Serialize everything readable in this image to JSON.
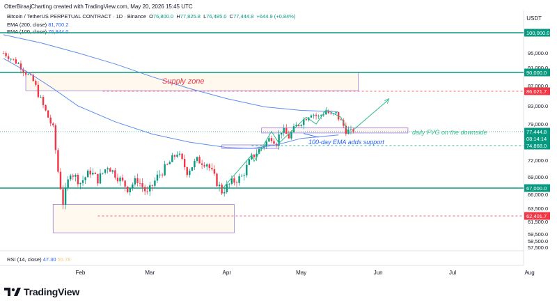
{
  "header": {
    "caption": "OtterBiraajCharting created with TradingView.com, May 20, 2026 15:45 UTC",
    "symbol": "Bitcoin / TetherUS PERPETUAL CONTRACT · 1D · Binance",
    "ohlc": {
      "o_label": "O",
      "o": "76,800.0",
      "h_label": "H",
      "h": "77,825.8",
      "l_label": "L",
      "l": "76,485.0",
      "c_label": "C",
      "c": "77,444.8",
      "change": "+644.9 (+0.84%)"
    },
    "ema200_label": "EMA (200, close)",
    "ema200_value": "81,700.2",
    "ema100_label": "EMA (100, close)",
    "ema100_value": "76,844.0",
    "currency": "USDT"
  },
  "rsi": {
    "label": "RSI (14, close)",
    "v1": "47.30",
    "v2": "55.78"
  },
  "brand": "TradingView",
  "colors": {
    "up": "#089981",
    "down": "#f23645",
    "ema": "#5b8def",
    "zone": "#9a7fd6",
    "level": "#089981",
    "accent": "#2962ff"
  },
  "chart_data": {
    "type": "candlestick",
    "y_axis_ticks": [
      "100,000.0",
      "95,000.0",
      "91,000.0",
      "90,000.0",
      "87,000.0",
      "86,021.7",
      "83,000.0",
      "79,000.0",
      "77,444.8",
      "74,868.0",
      "72,000.0",
      "69,000.0",
      "67,000.0",
      "66,000.0",
      "63,500.0",
      "62,401.7",
      "61,500.0",
      "59,500.0",
      "58,500.0",
      "57,500.0"
    ],
    "x_axis_ticks": [
      "Feb",
      "Mar",
      "Apr",
      "May",
      "Jun",
      "Jul",
      "Aug"
    ],
    "price_labels": [
      {
        "value": "100,000.0",
        "style": "level"
      },
      {
        "value": "90,000.0",
        "style": "level"
      },
      {
        "value": "86,021.7",
        "style": "down"
      },
      {
        "value": "77,444.8",
        "style": "up"
      },
      {
        "value": "08:14:14",
        "style": "up"
      },
      {
        "value": "74,868.0",
        "style": "level"
      },
      {
        "value": "67,000.0",
        "style": "level"
      },
      {
        "value": "62,401.7",
        "style": "down"
      }
    ],
    "horizontal_levels": [
      100000,
      90000,
      67000
    ],
    "dashed_levels": [
      86021.7,
      74868.0,
      62401.7
    ],
    "annotations": [
      "Supply zone",
      "daily FVG on the downside",
      "100-day EMA adds support"
    ],
    "last_close": 77444.8
  }
}
